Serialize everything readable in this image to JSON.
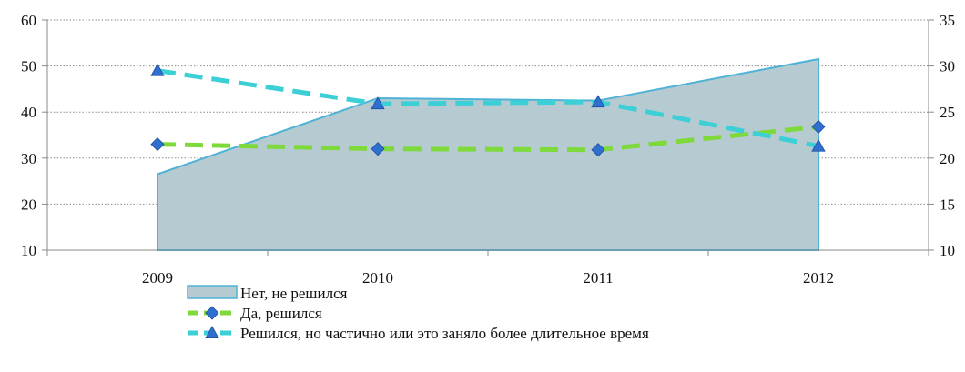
{
  "chart_data": {
    "type": "line",
    "categories": [
      "2009",
      "2010",
      "2011",
      "2012"
    ],
    "y_left": {
      "min": 10,
      "max": 60,
      "ticks": [
        10,
        20,
        30,
        40,
        50,
        60
      ]
    },
    "y_right": {
      "min": 10,
      "max": 35,
      "ticks": [
        10,
        15,
        20,
        25,
        30,
        35
      ]
    },
    "grid": true,
    "legend_position": "bottom-left",
    "series": [
      {
        "name": "Нет, не решился",
        "kind": "area",
        "axis": "left",
        "values": [
          26.5,
          43,
          42.5,
          51.5
        ],
        "color": "#b6cad2",
        "stroke": "#4fb3d6"
      },
      {
        "name": "Да, решился",
        "kind": "line",
        "axis": "right",
        "values": [
          21.5,
          21,
          20.9,
          23.4
        ],
        "color": "#7ed93a",
        "marker": "diamond",
        "marker_color": "#2f6fd0"
      },
      {
        "name": "Решился, но частично или это заняло более длительное время",
        "kind": "line",
        "axis": "right",
        "values": [
          29.5,
          25.9,
          26.1,
          21.3
        ],
        "color": "#3ccfd6",
        "marker": "triangle",
        "marker_color": "#2f6fd0"
      }
    ]
  }
}
